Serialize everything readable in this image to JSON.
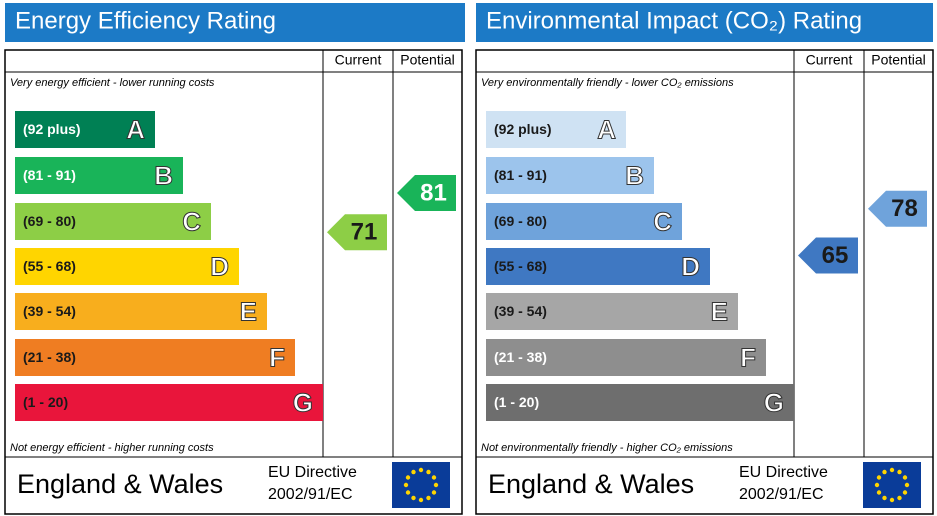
{
  "panels": [
    {
      "title": "Energy Efficiency Rating",
      "columns": [
        "Current",
        "Potential"
      ],
      "top_note": "Very energy efficient - lower running costs",
      "bottom_note": "Not energy efficient - higher running costs",
      "bands": [
        {
          "range": "(92 plus)",
          "letter": "A",
          "color": "#008054",
          "text_color": "#ffffff"
        },
        {
          "range": "(81 - 91)",
          "letter": "B",
          "color": "#19b459",
          "text_color": "#ffffff"
        },
        {
          "range": "(69 - 80)",
          "letter": "C",
          "color": "#8dce46",
          "text_color": "#1a1a1a"
        },
        {
          "range": "(55 - 68)",
          "letter": "D",
          "color": "#ffd500",
          "text_color": "#1a1a1a"
        },
        {
          "range": "(39 - 54)",
          "letter": "E",
          "color": "#f8ae1d",
          "text_color": "#1a1a1a"
        },
        {
          "range": "(21 - 38)",
          "letter": "F",
          "color": "#ef7d22",
          "text_color": "#1a1a1a"
        },
        {
          "range": "(1 - 20)",
          "letter": "G",
          "color": "#e9153b",
          "text_color": "#1a1a1a"
        }
      ],
      "current": 71,
      "potential": 81,
      "footer": {
        "region": "England & Wales",
        "directive": "EU Directive",
        "code": "2002/91/EC"
      }
    },
    {
      "title": "Environmental Impact (CO₂) Rating",
      "columns": [
        "Current",
        "Potential"
      ],
      "top_note": "Very environmentally friendly - lower CO₂ emissions",
      "bottom_note": "Not environmentally friendly - higher CO₂ emissions",
      "bands": [
        {
          "range": "(92 plus)",
          "letter": "A",
          "color": "#cfe2f3",
          "text_color": "#1a1a1a"
        },
        {
          "range": "(81 - 91)",
          "letter": "B",
          "color": "#9cc4ec",
          "text_color": "#1a1a1a"
        },
        {
          "range": "(69 - 80)",
          "letter": "C",
          "color": "#6fa3db",
          "text_color": "#1a1a1a"
        },
        {
          "range": "(55 - 68)",
          "letter": "D",
          "color": "#3f78c2",
          "text_color": "#1a1a1a"
        },
        {
          "range": "(39 - 54)",
          "letter": "E",
          "color": "#a6a6a6",
          "text_color": "#1a1a1a"
        },
        {
          "range": "(21 - 38)",
          "letter": "F",
          "color": "#8e8e8e",
          "text_color": "#ffffff"
        },
        {
          "range": "(1 - 20)",
          "letter": "G",
          "color": "#6e6e6e",
          "text_color": "#ffffff"
        }
      ],
      "current": 65,
      "potential": 78,
      "footer": {
        "region": "England & Wales",
        "directive": "EU Directive",
        "code": "2002/91/EC"
      }
    }
  ]
}
